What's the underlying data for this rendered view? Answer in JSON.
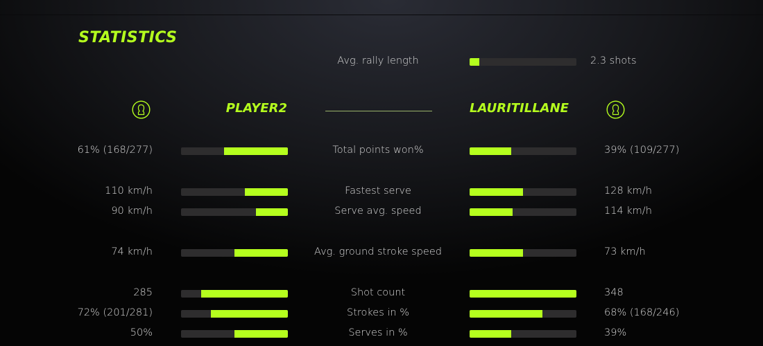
{
  "title": "STATISTICS",
  "accent_color": "#b5ff1e",
  "rally": {
    "label": "Avg. rally length",
    "value": "2.3 shots",
    "fill": 0.09
  },
  "players": {
    "left": {
      "name": "PLAYER2",
      "icon": "user-avatar-icon"
    },
    "right": {
      "name": "LAURITILLANE",
      "icon": "user-avatar-icon"
    }
  },
  "stats": [
    {
      "label": "Total points won%",
      "left": "61% (168/277)",
      "right": "39% (109/277)",
      "left_fill": 0.6,
      "right_fill": 0.39
    },
    {
      "label": "Fastest serve",
      "left": "110 km/h",
      "right": "128 km/h",
      "left_fill": 0.4,
      "right_fill": 0.5
    },
    {
      "label": "Serve avg. speed",
      "left": "90 km/h",
      "right": "114 km/h",
      "left_fill": 0.3,
      "right_fill": 0.4
    },
    {
      "label": "Avg. ground stroke speed",
      "left": "74 km/h",
      "right": "73 km/h",
      "left_fill": 0.5,
      "right_fill": 0.5
    },
    {
      "label": "Shot count",
      "left": "285",
      "right": "348",
      "left_fill": 0.81,
      "right_fill": 1.0
    },
    {
      "label": "Strokes in %",
      "left": "72% (201/281)",
      "right": "68% (168/246)",
      "left_fill": 0.72,
      "right_fill": 0.68
    },
    {
      "label": "Serves in %",
      "left": "50%",
      "right": "39%",
      "left_fill": 0.5,
      "right_fill": 0.39
    }
  ]
}
